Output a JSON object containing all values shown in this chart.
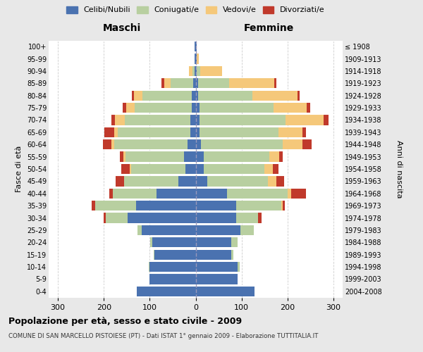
{
  "age_groups": [
    "100+",
    "95-99",
    "90-94",
    "85-89",
    "80-84",
    "75-79",
    "70-74",
    "65-69",
    "60-64",
    "55-59",
    "50-54",
    "45-49",
    "40-44",
    "35-39",
    "30-34",
    "25-29",
    "20-24",
    "15-19",
    "10-14",
    "5-9",
    "0-4"
  ],
  "birth_years": [
    "≤ 1908",
    "1909-1913",
    "1914-1918",
    "1919-1923",
    "1924-1928",
    "1929-1933",
    "1934-1938",
    "1939-1943",
    "1944-1948",
    "1949-1953",
    "1954-1958",
    "1959-1963",
    "1964-1968",
    "1969-1973",
    "1974-1978",
    "1979-1983",
    "1984-1988",
    "1989-1993",
    "1994-1998",
    "1999-2003",
    "2004-2008"
  ],
  "colors": {
    "celibe": "#4a72b0",
    "coniugato": "#b8cfa0",
    "vedovo": "#f5c87a",
    "divorziato": "#c0392b"
  },
  "maschi": {
    "celibe": [
      2,
      2,
      2,
      5,
      8,
      8,
      12,
      12,
      18,
      25,
      22,
      38,
      85,
      130,
      148,
      118,
      95,
      90,
      100,
      100,
      128
    ],
    "coniugato": [
      0,
      0,
      5,
      50,
      108,
      125,
      142,
      158,
      160,
      128,
      118,
      118,
      95,
      88,
      48,
      8,
      4,
      1,
      2,
      0,
      0
    ],
    "vedovo": [
      0,
      0,
      8,
      14,
      18,
      18,
      22,
      8,
      6,
      4,
      4,
      0,
      0,
      0,
      0,
      0,
      0,
      0,
      0,
      0,
      0
    ],
    "divorziato": [
      0,
      0,
      0,
      5,
      5,
      8,
      8,
      20,
      18,
      8,
      18,
      18,
      8,
      8,
      4,
      0,
      0,
      0,
      0,
      0,
      0
    ]
  },
  "femmine": {
    "nubile": [
      2,
      2,
      2,
      5,
      6,
      8,
      8,
      8,
      12,
      18,
      18,
      25,
      68,
      88,
      88,
      98,
      78,
      78,
      92,
      92,
      128
    ],
    "coniugata": [
      0,
      0,
      8,
      68,
      118,
      162,
      188,
      172,
      178,
      142,
      132,
      132,
      132,
      98,
      48,
      28,
      14,
      4,
      4,
      0,
      0
    ],
    "vedova": [
      0,
      5,
      48,
      98,
      98,
      72,
      82,
      52,
      42,
      22,
      18,
      18,
      8,
      4,
      0,
      0,
      0,
      0,
      0,
      0,
      0
    ],
    "divorziata": [
      0,
      0,
      0,
      5,
      5,
      8,
      12,
      8,
      20,
      8,
      12,
      18,
      32,
      4,
      8,
      0,
      0,
      0,
      0,
      0,
      0
    ]
  },
  "title": "Popolazione per età, sesso e stato civile - 2009",
  "subtitle": "COMUNE DI SAN MARCELLO PISTOIESE (PT) - Dati ISTAT 1° gennaio 2009 - Elaborazione TUTTITALIA.IT",
  "xlabel_left": "Maschi",
  "xlabel_right": "Femmine",
  "ylabel_left": "Fasce di età",
  "ylabel_right": "Anni di nascita",
  "xlim": 320,
  "legend_labels": [
    "Celibi/Nubili",
    "Coniugati/e",
    "Vedovi/e",
    "Divorziati/e"
  ],
  "bg_color": "#e8e8e8",
  "plot_bg": "#ffffff"
}
